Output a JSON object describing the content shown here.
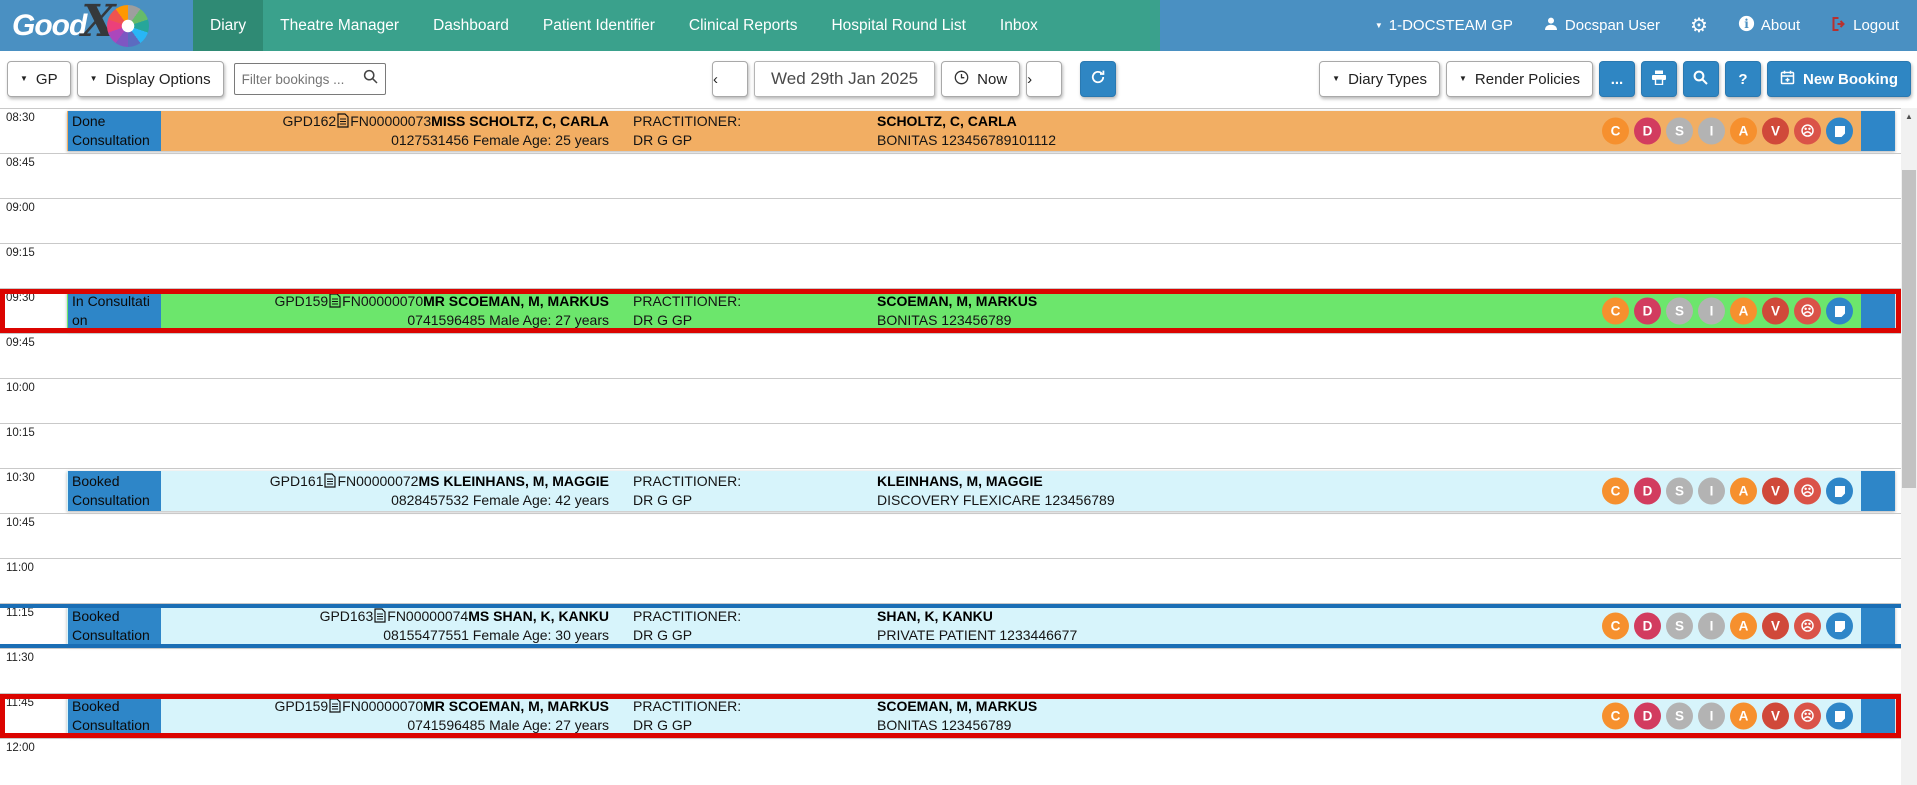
{
  "brand": {
    "logo_good": "Good",
    "logo_x": "X"
  },
  "icons": {
    "caret_down": "▼",
    "chevron_left": "‹",
    "chevron_right": "›",
    "scroll_up": "▲",
    "gear": "⚙",
    "ellipsis": "...",
    "question": "?"
  },
  "nav": {
    "items": [
      {
        "label": "Diary",
        "active": true
      },
      {
        "label": "Theatre Manager",
        "active": false
      },
      {
        "label": "Dashboard",
        "active": false
      },
      {
        "label": "Patient Identifier",
        "active": false
      },
      {
        "label": "Clinical Reports",
        "active": false
      },
      {
        "label": "Hospital Round List",
        "active": false
      },
      {
        "label": "Inbox",
        "active": false
      }
    ],
    "practice": "1-DOCSTEAM GP",
    "user": "Docspan User",
    "about": "About",
    "logout": "Logout"
  },
  "toolbar": {
    "gp": "GP",
    "display_options": "Display Options",
    "filter_placeholder": "Filter bookings ...",
    "date": "Wed 29th Jan 2025",
    "now": "Now",
    "diary_types": "Diary Types",
    "render_policies": "Render Policies",
    "new_booking": "New Booking"
  },
  "diary": {
    "time_slots": [
      "08:30",
      "08:45",
      "09:00",
      "09:15",
      "09:30",
      "09:45",
      "10:00",
      "10:15",
      "10:30",
      "10:45",
      "11:00",
      "11:15",
      "11:30",
      "11:45",
      "12:00"
    ],
    "accent_blue": "#2e86c8",
    "selection_border_color": "#db0400",
    "timeline_border_color": "#1a6eb5",
    "row_colors": {
      "done": "#f2ae63",
      "in_consultation": "#6ce66c",
      "booked": "#d7f4fb"
    },
    "bookings": [
      {
        "slot": "08:30",
        "status": "Done Consultation",
        "status_lines": [
          "Done",
          "Consultation"
        ],
        "row_color_key": "done",
        "highlight": "none",
        "code": "GPD162",
        "file_number": "FN00000073",
        "patient_name": "MISS SCHOLTZ, C, CARLA",
        "contact": "0127531456 Female Age: 25 years",
        "practitioner_label": "PRACTITIONER:",
        "practitioner": "DR G GP",
        "account_holder": "SCHOLTZ, C, CARLA",
        "medical_aid": "BONITAS 123456789101112"
      },
      {
        "slot": "09:30",
        "status": "In Consultation",
        "status_lines": [
          "In Consultati",
          "on"
        ],
        "row_color_key": "in_consultation",
        "highlight": "selected",
        "code": "GPD159",
        "file_number": "FN00000070",
        "patient_name": "MR SCOEMAN, M, MARKUS",
        "contact": "0741596485 Male Age: 27 years",
        "practitioner_label": "PRACTITIONER:",
        "practitioner": "DR G GP",
        "account_holder": "SCOEMAN, M, MARKUS",
        "medical_aid": "BONITAS 123456789"
      },
      {
        "slot": "10:30",
        "status": "Booked Consultation",
        "status_lines": [
          "Booked",
          "Consultation"
        ],
        "row_color_key": "booked",
        "highlight": "none",
        "code": "GPD161",
        "file_number": "FN00000072",
        "patient_name": "MS KLEINHANS, M, MAGGIE",
        "contact": "0828457532 Female Age: 42 years",
        "practitioner_label": "PRACTITIONER:",
        "practitioner": "DR G GP",
        "account_holder": "KLEINHANS, M, MAGGIE",
        "medical_aid": "DISCOVERY FLEXICARE 123456789"
      },
      {
        "slot": "11:15",
        "status": "Booked Consultation",
        "status_lines": [
          "Booked",
          "Consultation"
        ],
        "row_color_key": "booked",
        "highlight": "timeline",
        "code": "GPD163",
        "file_number": "FN00000074",
        "patient_name": "MS SHAN, K, KANKU",
        "contact": "08155477551 Female Age: 30 years",
        "practitioner_label": "PRACTITIONER:",
        "practitioner": "DR G GP",
        "account_holder": "SHAN, K, KANKU",
        "medical_aid": "PRIVATE PATIENT 1233446677"
      },
      {
        "slot": "11:45",
        "status": "Booked Consultation",
        "status_lines": [
          "Booked",
          "Consultation"
        ],
        "row_color_key": "booked",
        "highlight": "selected",
        "code": "GPD159",
        "file_number": "FN00000070",
        "patient_name": "MR SCOEMAN, M, MARKUS",
        "contact": "0741596485 Male Age: 27 years",
        "practitioner_label": "PRACTITIONER:",
        "practitioner": "DR G GP",
        "account_holder": "SCOEMAN, M, MARKUS",
        "medical_aid": "BONITAS 123456789"
      }
    ],
    "action_icons": [
      {
        "name": "c-badge-icon",
        "label": "C",
        "color": "#f6902e",
        "type": "letter"
      },
      {
        "name": "d-badge-icon",
        "label": "D",
        "color": "#d23c5f",
        "type": "letter"
      },
      {
        "name": "s-badge-icon",
        "label": "S",
        "color": "#b3b3b3",
        "type": "letter"
      },
      {
        "name": "i-badge-icon",
        "label": "I",
        "color": "#b3b3b3",
        "type": "letter"
      },
      {
        "name": "a-badge-icon",
        "label": "A",
        "color": "#f6902e",
        "type": "letter"
      },
      {
        "name": "v-badge-icon",
        "label": "V",
        "color": "#d0493a",
        "type": "letter"
      },
      {
        "name": "sad-face-icon",
        "label": "☹",
        "color": "#da5348",
        "type": "glyph"
      },
      {
        "name": "note-icon",
        "label": "",
        "color": "#2e86c8",
        "type": "note"
      }
    ]
  }
}
